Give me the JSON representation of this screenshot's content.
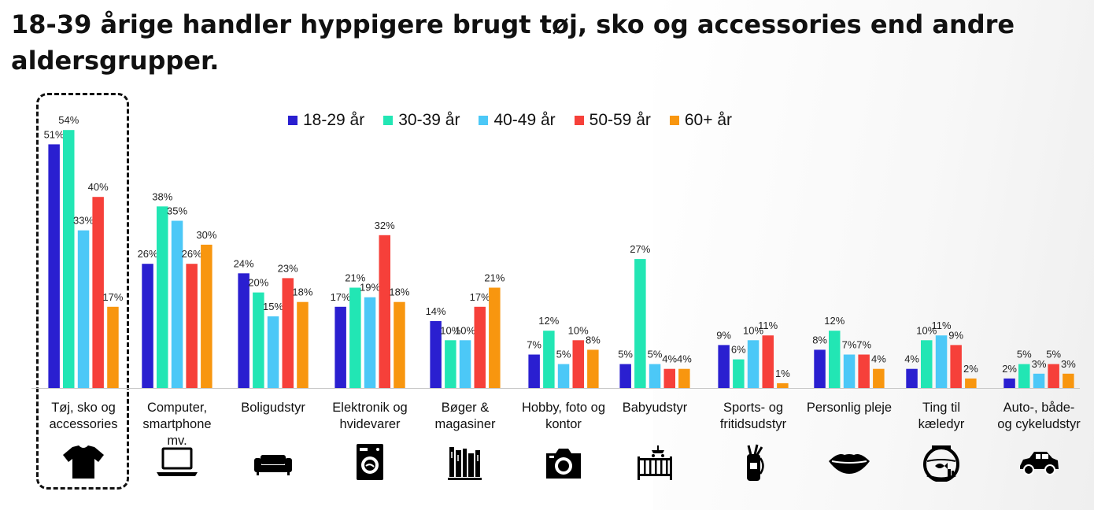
{
  "title": "18-39 årige handler hyppigere brugt tøj, sko og accessories end andre aldersgrupper.",
  "chart_data": {
    "type": "bar",
    "title": "18-39 årige handler hyppigere brugt tøj, sko og accessories end andre aldersgrupper.",
    "xlabel": "",
    "ylabel": "",
    "ylim": [
      0,
      60
    ],
    "grid": false,
    "legend": "top",
    "categories": [
      "Tøj, sko og accessories",
      "Computer, smartphone mv.",
      "Boligudstyr",
      "Elektronik og hvidevarer",
      "Bøger & magasiner",
      "Hobby, foto og kontor",
      "Babyudstyr",
      "Sports- og fritidsudstyr",
      "Personlig pleje",
      "Ting til kæledyr",
      "Auto-, både- og cykeludstyr"
    ],
    "series": [
      {
        "name": "18-29 år",
        "color": "#2a1fd0",
        "values": [
          51,
          26,
          24,
          17,
          14,
          7,
          5,
          9,
          8,
          4,
          2
        ]
      },
      {
        "name": "30-39 år",
        "color": "#22e6b4",
        "values": [
          54,
          38,
          20,
          21,
          10,
          12,
          27,
          6,
          12,
          10,
          5
        ]
      },
      {
        "name": "40-49 år",
        "color": "#4cc8f7",
        "values": [
          33,
          35,
          15,
          19,
          10,
          5,
          5,
          10,
          7,
          11,
          3
        ]
      },
      {
        "name": "50-59 år",
        "color": "#f6403a",
        "values": [
          40,
          26,
          23,
          32,
          17,
          10,
          4,
          11,
          7,
          9,
          5
        ]
      },
      {
        "name": "60+ år",
        "color": "#f8960f",
        "values": [
          17,
          30,
          18,
          18,
          21,
          8,
          4,
          1,
          4,
          2,
          3
        ]
      }
    ],
    "value_suffix": "%",
    "highlighted_category": "Tøj, sko og accessories"
  },
  "labels": [
    [
      "Tøj, sko og",
      "accessories"
    ],
    [
      "Computer,",
      "smartphone",
      "mv."
    ],
    [
      "Boligudstyr"
    ],
    [
      "Elektronik og",
      "hvidevarer"
    ],
    [
      "Bøger &",
      "magasiner"
    ],
    [
      "Hobby, foto og",
      "kontor"
    ],
    [
      "Babyudstyr"
    ],
    [
      "Sports- og",
      "fritidsudstyr"
    ],
    [
      "Personlig pleje"
    ],
    [
      "Ting til",
      "kæledyr"
    ],
    [
      "Auto-, både-",
      "og cykeludstyr"
    ]
  ],
  "icons": [
    "tshirt-icon",
    "laptop-icon",
    "sofa-icon",
    "washing-machine-icon",
    "books-icon",
    "camera-icon",
    "crib-icon",
    "golf-bag-icon",
    "lips-icon",
    "fishbowl-icon",
    "car-icon"
  ]
}
